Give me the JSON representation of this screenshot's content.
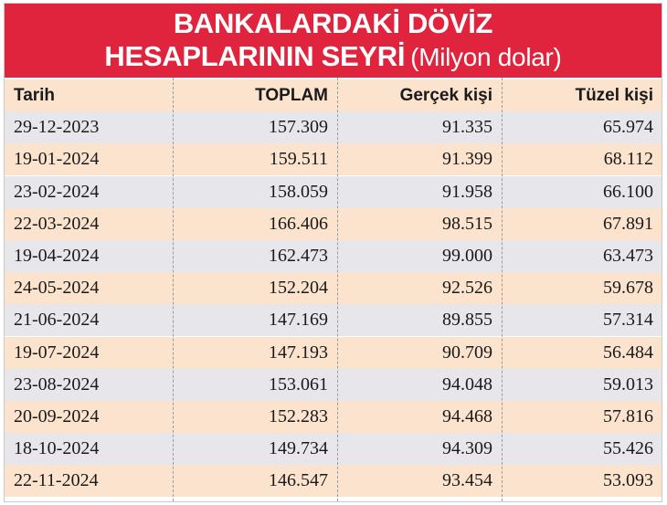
{
  "chart_data": {
    "type": "table",
    "title_line1": "BANKALARDAKİ DÖVİZ",
    "title_line2": "HESAPLARININ SEYRİ",
    "unit": "(Milyon dolar)",
    "columns": [
      "Tarih",
      "TOPLAM",
      "Gerçek kişi",
      "Tüzel kişi"
    ],
    "rows": [
      [
        "29-12-2023",
        "157.309",
        "91.335",
        "65.974"
      ],
      [
        "19-01-2024",
        "159.511",
        "91.399",
        "68.112"
      ],
      [
        "23-02-2024",
        "158.059",
        "91.958",
        "66.100"
      ],
      [
        "22-03-2024",
        "166.406",
        "98.515",
        "67.891"
      ],
      [
        "19-04-2024",
        "162.473",
        "99.000",
        "63.473"
      ],
      [
        "24-05-2024",
        "152.204",
        "92.526",
        "59.678"
      ],
      [
        "21-06-2024",
        "147.169",
        "89.855",
        "57.314"
      ],
      [
        "19-07-2024",
        "147.193",
        "90.709",
        "56.484"
      ],
      [
        "23-08-2024",
        "153.061",
        "94.048",
        "59.013"
      ],
      [
        "20-09-2024",
        "152.283",
        "94.468",
        "57.816"
      ],
      [
        "18-10-2024",
        "149.734",
        "94.309",
        "55.426"
      ],
      [
        "22-11-2024",
        "146.547",
        "93.454",
        "53.093"
      ]
    ]
  },
  "colors": {
    "title_background": "#e0243d",
    "title_text": "#ffffff",
    "row_gray": "#e7e6eb",
    "row_peach": "#fbe3ce"
  }
}
